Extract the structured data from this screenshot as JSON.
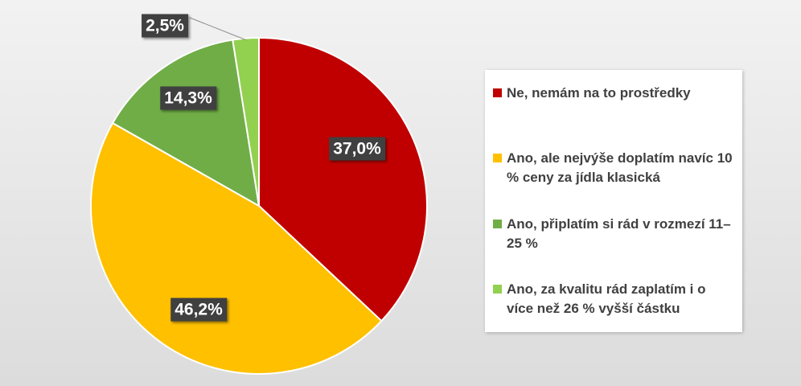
{
  "chart_data": {
    "type": "pie",
    "categories": [
      "Ne, nemám na to prostředky",
      "Ano, ale nejvýše doplatím navíc 10 % ceny za jídla klasická",
      "Ano, připlatím si rád v rozmezí 11–25 %",
      "Ano, za kvalitu rád zaplatím i o více než 26 % vyšší částku"
    ],
    "values": [
      37.0,
      46.2,
      14.3,
      2.5
    ],
    "data_labels": [
      "37,0%",
      "46,2%",
      "14,3%",
      "2,5%"
    ],
    "colors": [
      "#c00000",
      "#ffc000",
      "#70ad47",
      "#92d050"
    ],
    "legend_placement": "right",
    "start_angle_deg": 0,
    "direction": "clockwise"
  }
}
